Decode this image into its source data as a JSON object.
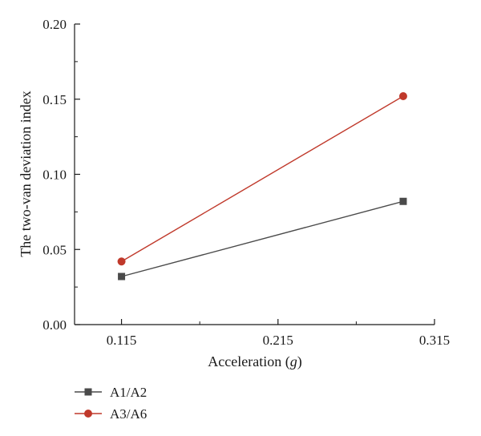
{
  "chart_data": {
    "type": "line",
    "title": "",
    "xlabel": "Acceleration",
    "xlabel_unit": "g",
    "ylabel": "The two-van deviation index",
    "xlim": [
      0.085,
      0.315
    ],
    "ylim": [
      0.0,
      0.2
    ],
    "x_ticks": [
      "0.115",
      "0.215",
      "0.315"
    ],
    "y_ticks": [
      "0.00",
      "0.05",
      "0.10",
      "0.15",
      "0.20"
    ],
    "grid": false,
    "legend_position": "bottom-left",
    "series": [
      {
        "name": "A1/A2",
        "color": "#4a4a4a",
        "marker": "square",
        "x": [
          0.115,
          0.295
        ],
        "y": [
          0.032,
          0.082
        ]
      },
      {
        "name": "A3/A6",
        "color": "#c0392b",
        "marker": "circle",
        "x": [
          0.115,
          0.295
        ],
        "y": [
          0.042,
          0.152
        ]
      }
    ]
  }
}
